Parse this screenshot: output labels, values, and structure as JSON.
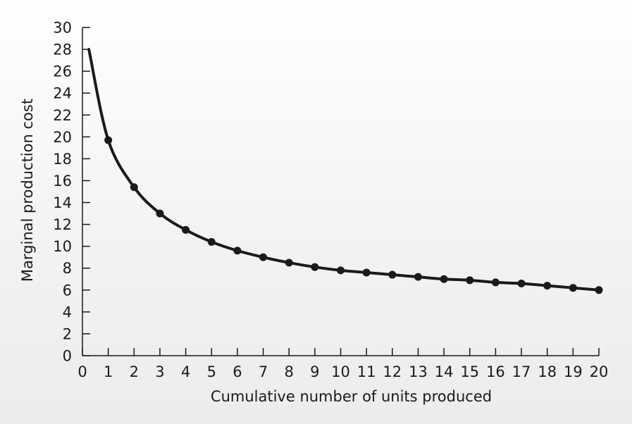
{
  "chart_data": {
    "type": "line",
    "title": "",
    "xlabel": "Cumulative number of units produced",
    "ylabel": "Marginal production cost",
    "xlim": [
      0,
      20
    ],
    "ylim": [
      0,
      30
    ],
    "x_ticks": [
      0,
      1,
      2,
      3,
      4,
      5,
      6,
      7,
      8,
      9,
      10,
      11,
      12,
      13,
      14,
      15,
      16,
      17,
      18,
      19,
      20
    ],
    "y_ticks": [
      0,
      2,
      4,
      6,
      8,
      10,
      12,
      14,
      16,
      18,
      20,
      22,
      24,
      26,
      28,
      30
    ],
    "grid": false,
    "legend": "none",
    "line_color": "#1a1a1a",
    "series": [
      {
        "curve_start": {
          "x": 0.25,
          "y": 28
        },
        "markers": true,
        "x": [
          1,
          2,
          3,
          4,
          5,
          6,
          7,
          8,
          9,
          10,
          11,
          12,
          13,
          14,
          15,
          16,
          17,
          18,
          19,
          20
        ],
        "y": [
          19.7,
          15.4,
          13.0,
          11.5,
          10.4,
          9.6,
          9.0,
          8.5,
          8.1,
          7.8,
          7.6,
          7.4,
          7.2,
          7.0,
          6.9,
          6.7,
          6.6,
          6.4,
          6.2,
          6.0
        ]
      }
    ]
  }
}
